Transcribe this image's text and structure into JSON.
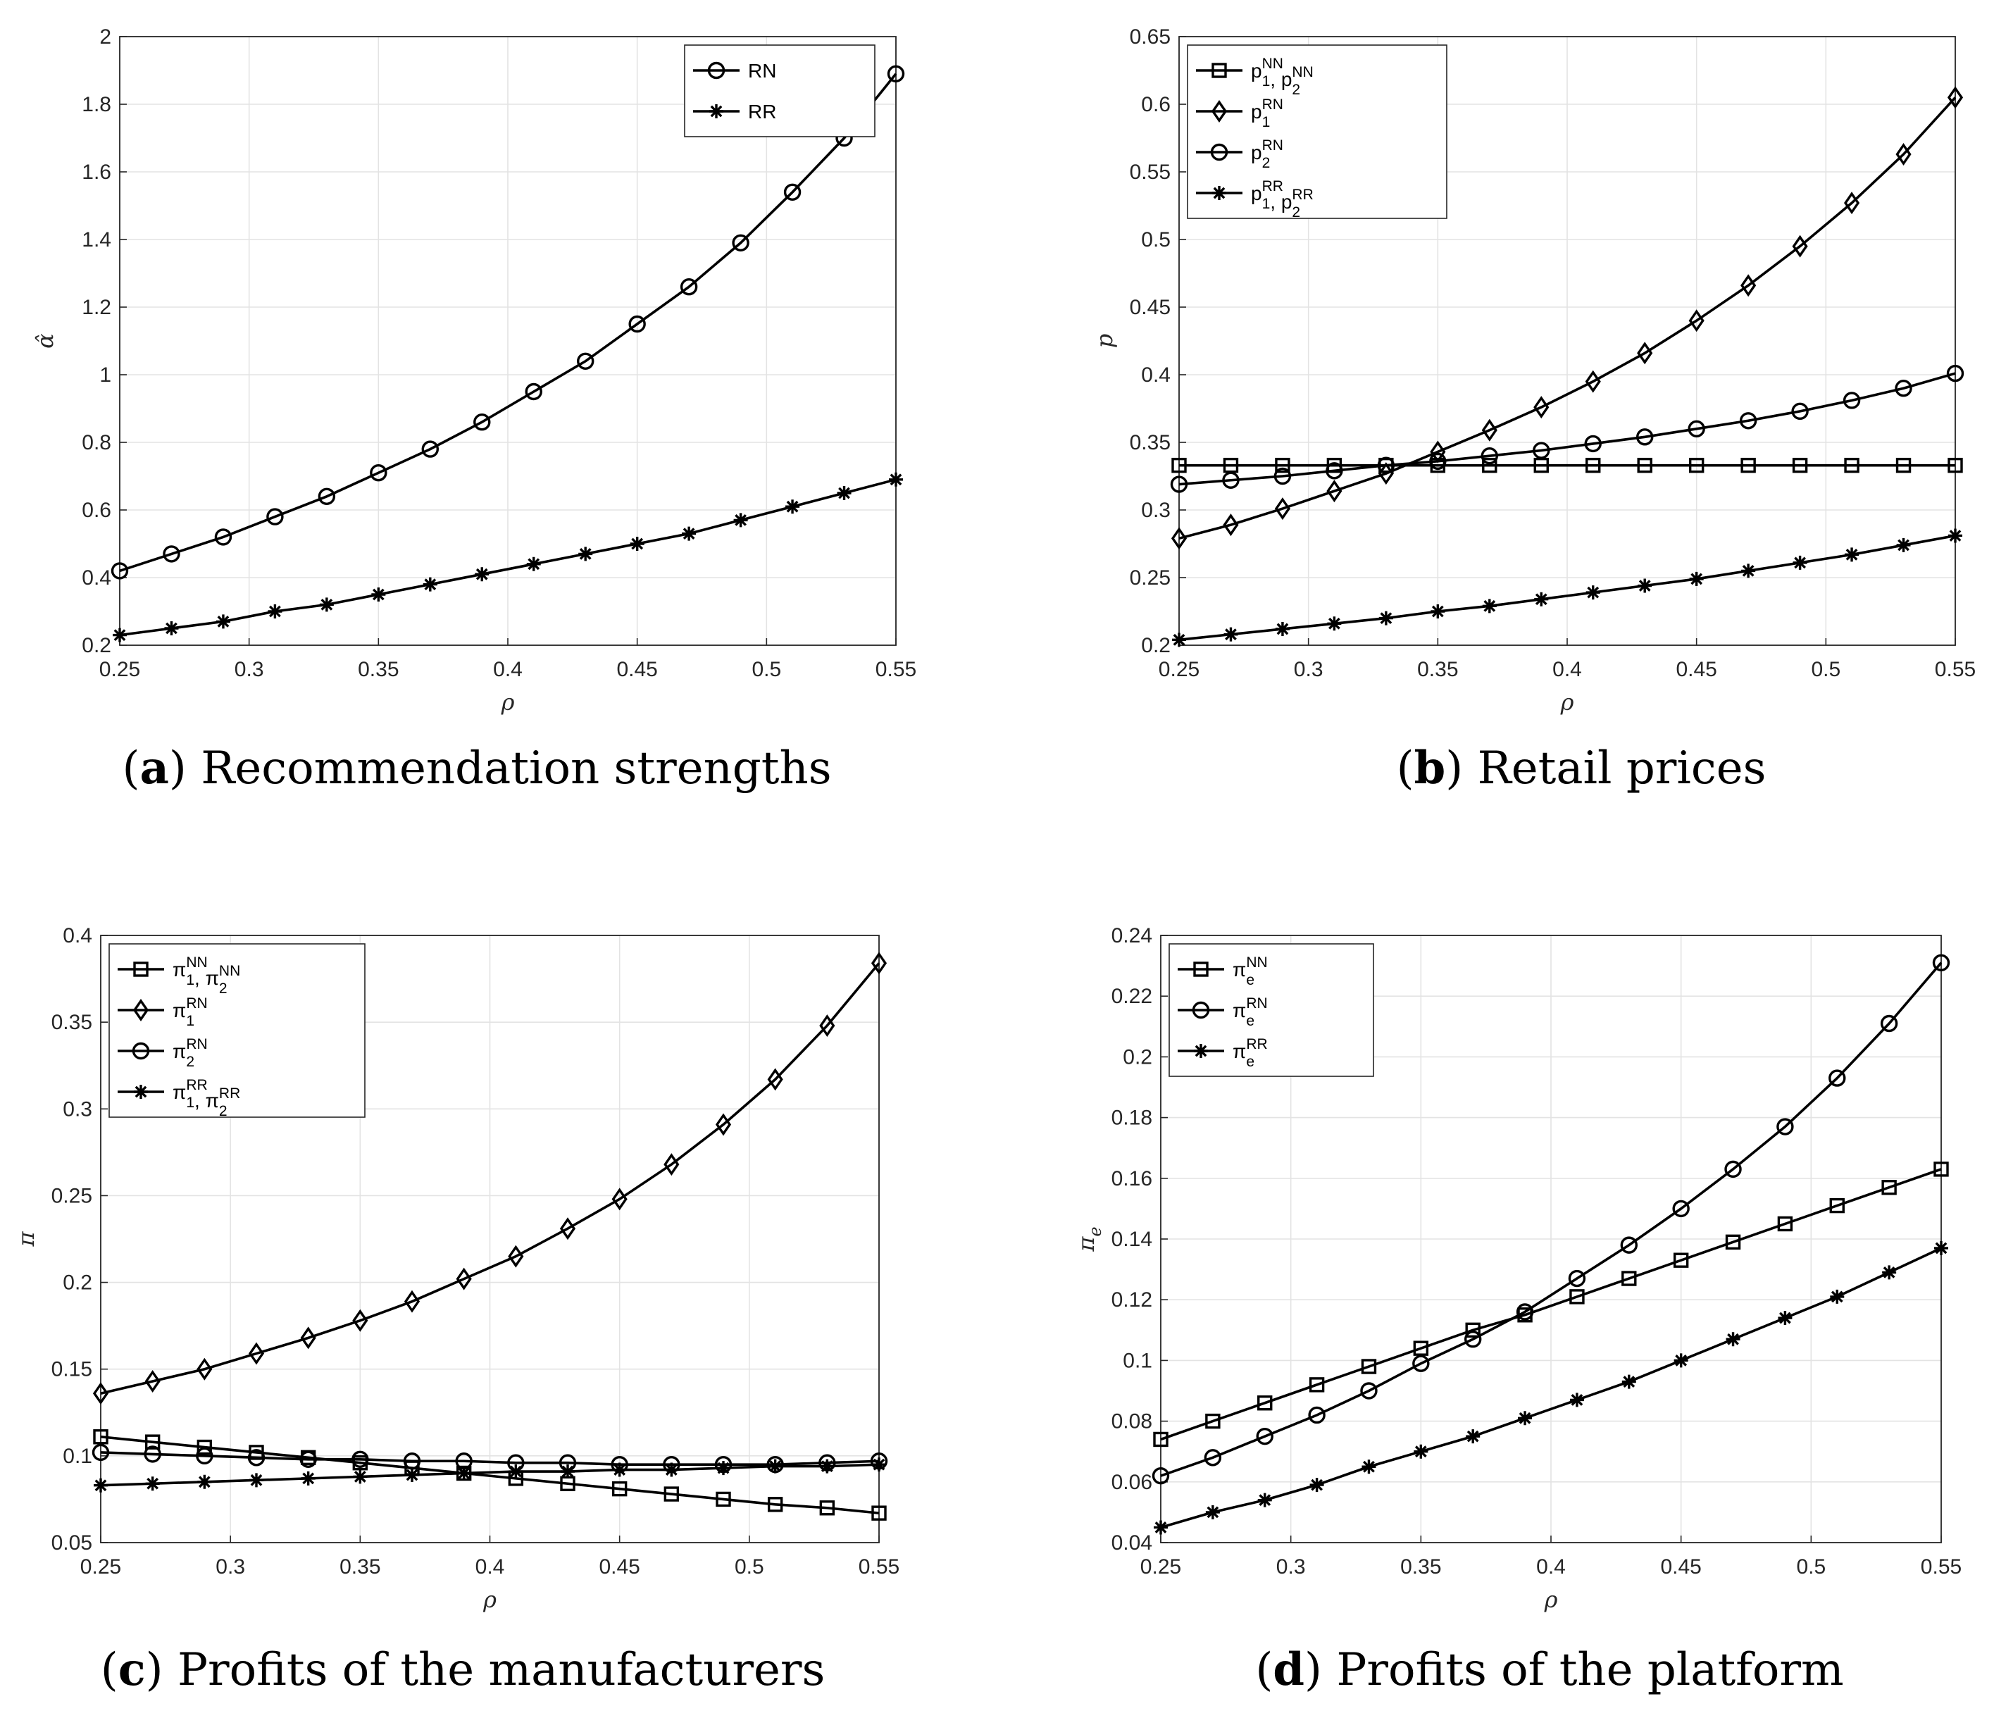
{
  "chart_data": [
    {
      "type": "line",
      "title": "",
      "caption": {
        "label": "a",
        "text": "Recommendation strengths"
      },
      "xlabel": "ρ",
      "ylabel": "α̂",
      "xlim": [
        0.25,
        0.55
      ],
      "ylim": [
        0.2,
        2.0
      ],
      "xticks": [
        "0.25",
        "0.3",
        "0.35",
        "0.4",
        "0.45",
        "0.5",
        "0.55"
      ],
      "yticks": [
        "0.2",
        "0.4",
        "0.6",
        "0.8",
        "1",
        "1.2",
        "1.4",
        "1.6",
        "1.8",
        "2"
      ],
      "x": [
        0.25,
        0.27,
        0.29,
        0.31,
        0.33,
        0.35,
        0.37,
        0.39,
        0.41,
        0.43,
        0.45,
        0.47,
        0.49,
        0.51,
        0.53,
        0.55
      ],
      "legend_position": "top-right",
      "series": [
        {
          "name": "RN",
          "marker": "circle",
          "legend": {
            "base": "RN"
          },
          "values": [
            0.42,
            0.47,
            0.52,
            0.58,
            0.64,
            0.71,
            0.78,
            0.86,
            0.95,
            1.04,
            1.15,
            1.26,
            1.39,
            1.54,
            1.7,
            1.89
          ]
        },
        {
          "name": "RR",
          "marker": "star",
          "legend": {
            "base": "RR"
          },
          "values": [
            0.23,
            0.25,
            0.27,
            0.3,
            0.32,
            0.35,
            0.38,
            0.41,
            0.44,
            0.47,
            0.5,
            0.53,
            0.57,
            0.61,
            0.65,
            0.69
          ]
        }
      ]
    },
    {
      "type": "line",
      "title": "",
      "caption": {
        "label": "b",
        "text": "Retail prices"
      },
      "xlabel": "ρ",
      "ylabel": "p",
      "xlim": [
        0.25,
        0.55
      ],
      "ylim": [
        0.2,
        0.65
      ],
      "xticks": [
        "0.25",
        "0.3",
        "0.35",
        "0.4",
        "0.45",
        "0.5",
        "0.55"
      ],
      "yticks": [
        "0.2",
        "0.25",
        "0.3",
        "0.35",
        "0.4",
        "0.45",
        "0.5",
        "0.55",
        "0.6",
        "0.65"
      ],
      "x": [
        0.25,
        0.27,
        0.29,
        0.31,
        0.33,
        0.35,
        0.37,
        0.39,
        0.41,
        0.43,
        0.45,
        0.47,
        0.49,
        0.51,
        0.53,
        0.55
      ],
      "legend_position": "top-left",
      "series": [
        {
          "name": "p1^NN, p2^NN",
          "marker": "square",
          "legend": {
            "base": "p",
            "sub1": "1",
            "sup1": "NN",
            "sep": ", ",
            "base2": "p",
            "sub2": "2",
            "sup2": "NN"
          },
          "values": [
            0.333,
            0.333,
            0.333,
            0.333,
            0.333,
            0.333,
            0.333,
            0.333,
            0.333,
            0.333,
            0.333,
            0.333,
            0.333,
            0.333,
            0.333,
            0.333
          ]
        },
        {
          "name": "p1^RN",
          "marker": "diamond",
          "legend": {
            "base": "p",
            "sub1": "1",
            "sup1": "RN"
          },
          "values": [
            0.279,
            0.289,
            0.301,
            0.314,
            0.327,
            0.343,
            0.359,
            0.376,
            0.395,
            0.416,
            0.44,
            0.466,
            0.495,
            0.527,
            0.563,
            0.605
          ]
        },
        {
          "name": "p2^RN",
          "marker": "circle",
          "legend": {
            "base": "p",
            "sub1": "2",
            "sup1": "RN"
          },
          "values": [
            0.319,
            0.322,
            0.325,
            0.329,
            0.333,
            0.336,
            0.34,
            0.344,
            0.349,
            0.354,
            0.36,
            0.366,
            0.373,
            0.381,
            0.39,
            0.401
          ]
        },
        {
          "name": "p1^RR, p2^RR",
          "marker": "star",
          "legend": {
            "base": "p",
            "sub1": "1",
            "sup1": "RR",
            "sep": ", ",
            "base2": "p",
            "sub2": "2",
            "sup2": "RR"
          },
          "values": [
            0.204,
            0.208,
            0.212,
            0.216,
            0.22,
            0.225,
            0.229,
            0.234,
            0.239,
            0.244,
            0.249,
            0.255,
            0.261,
            0.267,
            0.274,
            0.281
          ]
        }
      ]
    },
    {
      "type": "line",
      "title": "",
      "caption": {
        "label": "c",
        "text": "Profits of the manufacturers"
      },
      "xlabel": "ρ",
      "ylabel": "π",
      "xlim": [
        0.25,
        0.55
      ],
      "ylim": [
        0.05,
        0.4
      ],
      "xticks": [
        "0.25",
        "0.3",
        "0.35",
        "0.4",
        "0.45",
        "0.5",
        "0.55"
      ],
      "yticks": [
        "0.05",
        "0.1",
        "0.15",
        "0.2",
        "0.25",
        "0.3",
        "0.35",
        "0.4"
      ],
      "x": [
        0.25,
        0.27,
        0.29,
        0.31,
        0.33,
        0.35,
        0.37,
        0.39,
        0.41,
        0.43,
        0.45,
        0.47,
        0.49,
        0.51,
        0.53,
        0.55
      ],
      "legend_position": "top-left",
      "series": [
        {
          "name": "π1^NN, π2^NN",
          "marker": "square",
          "legend": {
            "base": "π",
            "sub1": "1",
            "sup1": "NN",
            "sep": ", ",
            "base2": "π",
            "sub2": "2",
            "sup2": "NN"
          },
          "values": [
            0.111,
            0.108,
            0.105,
            0.102,
            0.099,
            0.096,
            0.093,
            0.09,
            0.087,
            0.084,
            0.081,
            0.078,
            0.075,
            0.072,
            0.07,
            0.067
          ]
        },
        {
          "name": "π1^RN",
          "marker": "diamond",
          "legend": {
            "base": "π",
            "sub1": "1",
            "sup1": "RN"
          },
          "values": [
            0.136,
            0.143,
            0.15,
            0.159,
            0.168,
            0.178,
            0.189,
            0.202,
            0.215,
            0.231,
            0.248,
            0.268,
            0.291,
            0.317,
            0.348,
            0.384
          ]
        },
        {
          "name": "π2^RN",
          "marker": "circle",
          "legend": {
            "base": "π",
            "sub1": "2",
            "sup1": "RN"
          },
          "values": [
            0.102,
            0.101,
            0.1,
            0.099,
            0.098,
            0.098,
            0.097,
            0.097,
            0.096,
            0.096,
            0.095,
            0.095,
            0.095,
            0.095,
            0.096,
            0.097
          ]
        },
        {
          "name": "π1^RR, π2^RR",
          "marker": "star",
          "legend": {
            "base": "π",
            "sub1": "1",
            "sup1": "RR",
            "sep": ", ",
            "base2": "π",
            "sub2": "2",
            "sup2": "RR"
          },
          "values": [
            0.083,
            0.084,
            0.085,
            0.086,
            0.087,
            0.088,
            0.089,
            0.09,
            0.091,
            0.091,
            0.092,
            0.092,
            0.093,
            0.094,
            0.094,
            0.095
          ]
        }
      ]
    },
    {
      "type": "line",
      "title": "",
      "caption": {
        "label": "d",
        "text": "Profits of the platform"
      },
      "xlabel": "ρ",
      "ylabel": "π",
      "ylabel_sub": "e",
      "xlim": [
        0.25,
        0.55
      ],
      "ylim": [
        0.04,
        0.24
      ],
      "xticks": [
        "0.25",
        "0.3",
        "0.35",
        "0.4",
        "0.45",
        "0.5",
        "0.55"
      ],
      "yticks": [
        "0.04",
        "0.06",
        "0.08",
        "0.1",
        "0.12",
        "0.14",
        "0.16",
        "0.18",
        "0.2",
        "0.22",
        "0.24"
      ],
      "x": [
        0.25,
        0.27,
        0.29,
        0.31,
        0.33,
        0.35,
        0.37,
        0.39,
        0.41,
        0.43,
        0.45,
        0.47,
        0.49,
        0.51,
        0.53,
        0.55
      ],
      "legend_position": "top-left",
      "series": [
        {
          "name": "πe^NN",
          "marker": "square",
          "legend": {
            "base": "π",
            "sub1": "e",
            "sup1": "NN"
          },
          "values": [
            0.074,
            0.08,
            0.086,
            0.092,
            0.098,
            0.104,
            0.11,
            0.115,
            0.121,
            0.127,
            0.133,
            0.139,
            0.145,
            0.151,
            0.157,
            0.163
          ]
        },
        {
          "name": "πe^RN",
          "marker": "circle",
          "legend": {
            "base": "π",
            "sub1": "e",
            "sup1": "RN"
          },
          "values": [
            0.062,
            0.068,
            0.075,
            0.082,
            0.09,
            0.099,
            0.107,
            0.116,
            0.127,
            0.138,
            0.15,
            0.163,
            0.177,
            0.193,
            0.211,
            0.231
          ]
        },
        {
          "name": "πe^RR",
          "marker": "star",
          "legend": {
            "base": "π",
            "sub1": "e",
            "sup1": "RR"
          },
          "values": [
            0.045,
            0.05,
            0.054,
            0.059,
            0.065,
            0.07,
            0.075,
            0.081,
            0.087,
            0.093,
            0.1,
            0.107,
            0.114,
            0.121,
            0.129,
            0.137
          ]
        }
      ]
    }
  ]
}
